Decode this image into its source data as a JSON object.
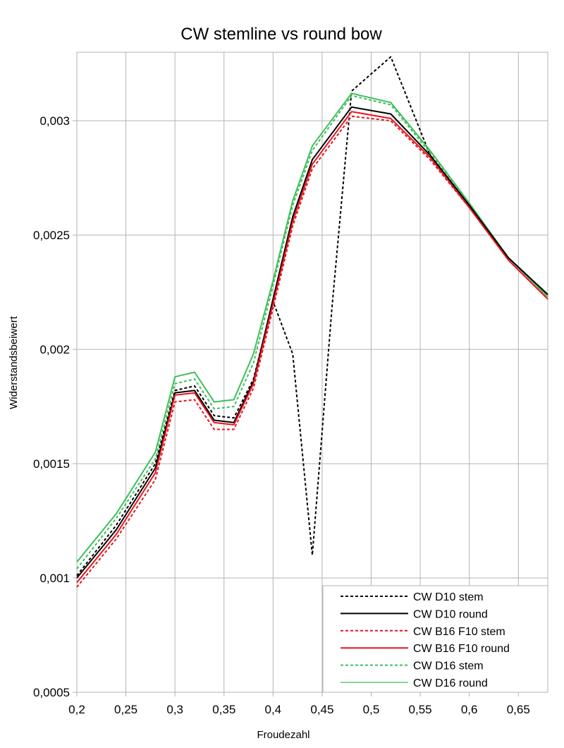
{
  "chart_data": {
    "type": "line",
    "title": "CW stemline vs round bow",
    "xlabel": "Froudezahl",
    "ylabel": "Widerstandsbeiwert",
    "xlim": [
      0.2,
      0.68
    ],
    "ylim": [
      0.0005,
      0.0033
    ],
    "grid": true,
    "legend_position": "bottom-right",
    "x_ticks": [
      {
        "value": 0.2,
        "label": "0,2"
      },
      {
        "value": 0.25,
        "label": "0,25"
      },
      {
        "value": 0.3,
        "label": "0,3"
      },
      {
        "value": 0.35,
        "label": "0,35"
      },
      {
        "value": 0.4,
        "label": "0,4"
      },
      {
        "value": 0.45,
        "label": "0,45"
      },
      {
        "value": 0.5,
        "label": "0,5"
      },
      {
        "value": 0.55,
        "label": "0,55"
      },
      {
        "value": 0.6,
        "label": "0,6"
      },
      {
        "value": 0.65,
        "label": "0,65"
      }
    ],
    "y_ticks": [
      {
        "value": 0.0005,
        "label": "0,0005"
      },
      {
        "value": 0.001,
        "label": "0,001"
      },
      {
        "value": 0.0015,
        "label": "0,0015"
      },
      {
        "value": 0.002,
        "label": "0,002"
      },
      {
        "value": 0.0025,
        "label": "0,0025"
      },
      {
        "value": 0.003,
        "label": "0,003"
      }
    ],
    "series": [
      {
        "name": "CW D10 stem",
        "color": "#000000",
        "dashed": true,
        "width": 2,
        "x": [
          0.2,
          0.24,
          0.28,
          0.3,
          0.32,
          0.34,
          0.36,
          0.38,
          0.4,
          0.42,
          0.44,
          0.46,
          0.48,
          0.52,
          0.56,
          0.6,
          0.64,
          0.68
        ],
        "y": [
          0.00101,
          0.00123,
          0.0015,
          0.00182,
          0.00184,
          0.00171,
          0.0017,
          0.00187,
          0.00221,
          0.00198,
          0.0011,
          0.00218,
          0.00313,
          0.00328,
          0.00285,
          0.00263,
          0.0024,
          0.00224
        ]
      },
      {
        "name": "CW D10 round",
        "color": "#000000",
        "dashed": false,
        "width": 2,
        "x": [
          0.2,
          0.24,
          0.28,
          0.3,
          0.32,
          0.34,
          0.36,
          0.38,
          0.4,
          0.42,
          0.44,
          0.48,
          0.52,
          0.56,
          0.6,
          0.64,
          0.68
        ],
        "y": [
          0.001,
          0.00121,
          0.00148,
          0.00181,
          0.00182,
          0.00169,
          0.00168,
          0.00186,
          0.00222,
          0.00258,
          0.00283,
          0.00306,
          0.00303,
          0.00285,
          0.00263,
          0.0024,
          0.00224
        ]
      },
      {
        "name": "CW B16 F10 stem",
        "color": "#e8141e",
        "dashed": true,
        "width": 2,
        "x": [
          0.2,
          0.24,
          0.28,
          0.3,
          0.32,
          0.34,
          0.36,
          0.38,
          0.4,
          0.42,
          0.44,
          0.48,
          0.52,
          0.56,
          0.6,
          0.64,
          0.68
        ],
        "y": [
          0.00096,
          0.00117,
          0.00143,
          0.00177,
          0.00178,
          0.00165,
          0.00165,
          0.00183,
          0.00218,
          0.00254,
          0.00279,
          0.00302,
          0.003,
          0.00283,
          0.00262,
          0.00239,
          0.00222
        ]
      },
      {
        "name": "CW B16 F10 round",
        "color": "#e8141e",
        "dashed": false,
        "width": 2,
        "x": [
          0.2,
          0.24,
          0.28,
          0.3,
          0.32,
          0.34,
          0.36,
          0.38,
          0.4,
          0.42,
          0.44,
          0.48,
          0.52,
          0.56,
          0.6,
          0.64,
          0.68
        ],
        "y": [
          0.00098,
          0.00119,
          0.00146,
          0.0018,
          0.00181,
          0.00168,
          0.00167,
          0.00185,
          0.0022,
          0.00256,
          0.00281,
          0.00304,
          0.00301,
          0.00284,
          0.00262,
          0.00239,
          0.00222
        ]
      },
      {
        "name": "CW D16 stem",
        "color": "#3cbf5a",
        "dashed": true,
        "width": 2,
        "x": [
          0.2,
          0.24,
          0.28,
          0.3,
          0.32,
          0.34,
          0.36,
          0.38,
          0.4,
          0.42,
          0.44,
          0.48,
          0.52,
          0.56,
          0.6,
          0.64,
          0.68
        ],
        "y": [
          0.00104,
          0.00126,
          0.00152,
          0.00185,
          0.00187,
          0.00174,
          0.00175,
          0.00194,
          0.00228,
          0.00263,
          0.00287,
          0.00311,
          0.00307,
          0.00286,
          0.00263,
          0.0024,
          0.00223
        ]
      },
      {
        "name": "CW D16 round",
        "color": "#3cbf5a",
        "dashed": false,
        "width": 2,
        "x": [
          0.2,
          0.24,
          0.28,
          0.3,
          0.32,
          0.34,
          0.36,
          0.38,
          0.4,
          0.42,
          0.44,
          0.48,
          0.52,
          0.56,
          0.6,
          0.64,
          0.68
        ],
        "y": [
          0.00107,
          0.00128,
          0.00155,
          0.00188,
          0.0019,
          0.00177,
          0.00178,
          0.00198,
          0.0023,
          0.00265,
          0.00289,
          0.00312,
          0.00308,
          0.00287,
          0.00264,
          0.0024,
          0.00223
        ]
      }
    ]
  }
}
